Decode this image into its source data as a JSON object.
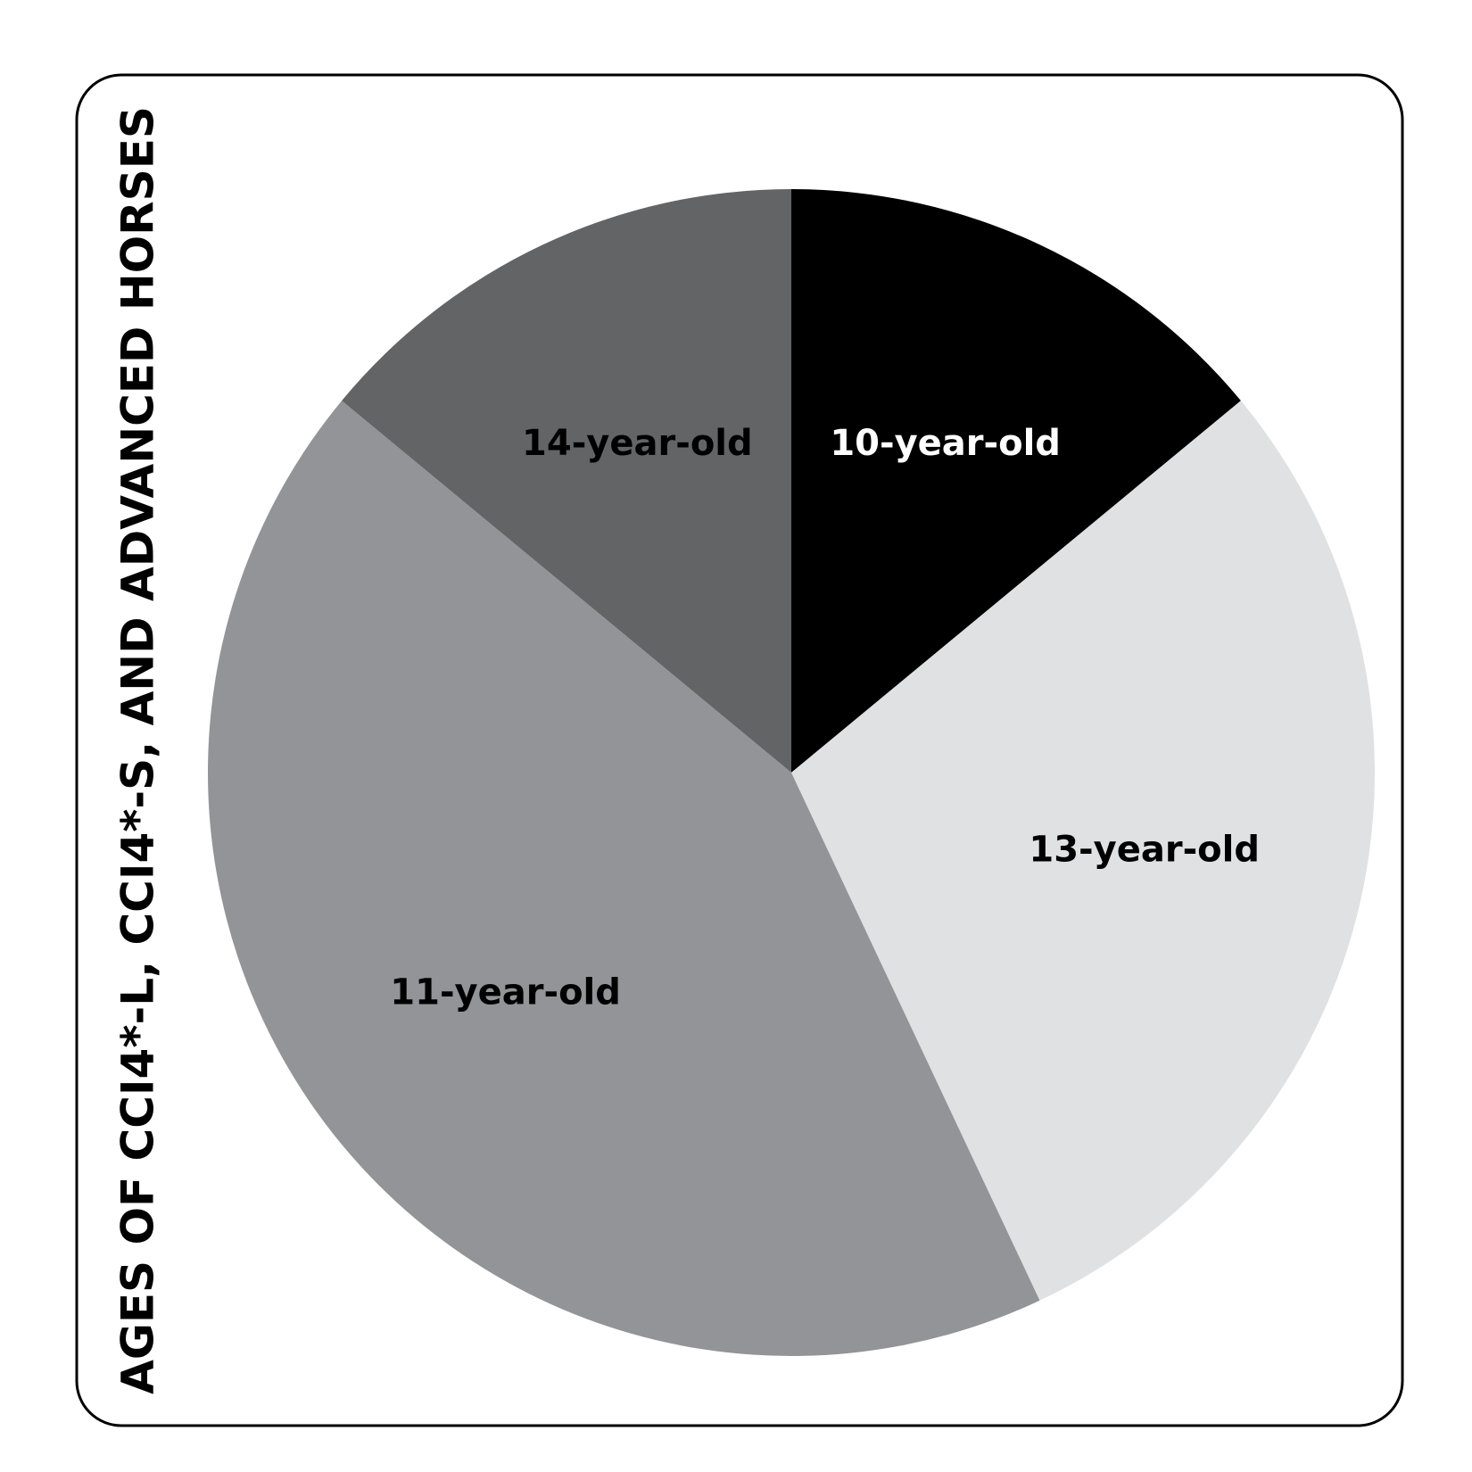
{
  "chart_data": {
    "type": "pie",
    "title": "AGES OF CCI4*-L, CCI4*-S, AND ADVANCED HORSES",
    "categories": [
      "10-year-old",
      "13-year-old",
      "11-year-old",
      "14-year-old"
    ],
    "values": [
      14,
      29,
      43,
      14
    ],
    "colors": [
      "#000000",
      "#e0e1e2",
      "#939497",
      "#636466"
    ],
    "start_angle": 0,
    "direction": "clockwise"
  }
}
